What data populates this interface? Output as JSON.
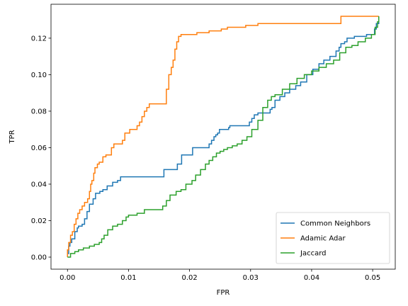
{
  "chart_data": {
    "type": "line",
    "xlabel": "FPR",
    "ylabel": "TPR",
    "xlim": [
      -0.0027,
      0.0537
    ],
    "ylim": [
      -0.0066,
      0.1386
    ],
    "xticks": [
      0.0,
      0.01,
      0.02,
      0.03,
      0.04,
      0.05
    ],
    "xtick_labels": [
      "0.00",
      "0.01",
      "0.02",
      "0.03",
      "0.04",
      "0.05"
    ],
    "yticks": [
      0.0,
      0.02,
      0.04,
      0.06,
      0.08,
      0.1,
      0.12
    ],
    "ytick_labels": [
      "0.00",
      "0.02",
      "0.04",
      "0.06",
      "0.08",
      "0.10",
      "0.12"
    ],
    "grid": false,
    "legend_position": "lower-right",
    "series": [
      {
        "name": "Common Neighbors",
        "color": "#1f77b4",
        "x": [
          0.0,
          0.0,
          0.0002,
          0.0004,
          0.0007,
          0.0012,
          0.0016,
          0.0018,
          0.0024,
          0.0028,
          0.0032,
          0.0036,
          0.0042,
          0.0046,
          0.0053,
          0.0058,
          0.0065,
          0.0074,
          0.0082,
          0.0087,
          0.0092,
          0.0155,
          0.0158,
          0.0178,
          0.018,
          0.0187,
          0.0205,
          0.0209,
          0.0232,
          0.0236,
          0.024,
          0.0243,
          0.0246,
          0.0249,
          0.0262,
          0.0264,
          0.0266,
          0.0298,
          0.0302,
          0.0306,
          0.0312,
          0.0332,
          0.0335,
          0.034,
          0.0348,
          0.0356,
          0.0364,
          0.0374,
          0.0382,
          0.0392,
          0.0402,
          0.0412,
          0.042,
          0.043,
          0.044,
          0.0445,
          0.0448,
          0.0454,
          0.0458,
          0.047,
          0.049,
          0.0503,
          0.0506,
          0.051
        ],
        "y": [
          0.0,
          0.002,
          0.006,
          0.008,
          0.01,
          0.014,
          0.016,
          0.017,
          0.018,
          0.021,
          0.025,
          0.029,
          0.032,
          0.035,
          0.036,
          0.037,
          0.039,
          0.041,
          0.042,
          0.044,
          0.044,
          0.044,
          0.048,
          0.048,
          0.051,
          0.056,
          0.06,
          0.06,
          0.062,
          0.064,
          0.066,
          0.067,
          0.068,
          0.07,
          0.07,
          0.071,
          0.072,
          0.074,
          0.076,
          0.078,
          0.079,
          0.081,
          0.082,
          0.086,
          0.088,
          0.09,
          0.092,
          0.094,
          0.096,
          0.1,
          0.103,
          0.106,
          0.108,
          0.11,
          0.113,
          0.115,
          0.117,
          0.118,
          0.12,
          0.121,
          0.122,
          0.125,
          0.128,
          0.132
        ]
      },
      {
        "name": "Adamic Adar",
        "color": "#ff7f0e",
        "x": [
          0.0,
          0.0,
          0.0002,
          0.0005,
          0.0008,
          0.0011,
          0.0014,
          0.0017,
          0.002,
          0.0024,
          0.0028,
          0.0033,
          0.0036,
          0.0038,
          0.004,
          0.0043,
          0.0045,
          0.0049,
          0.0052,
          0.0058,
          0.0063,
          0.0067,
          0.0072,
          0.0076,
          0.0082,
          0.009,
          0.0094,
          0.0102,
          0.0108,
          0.0114,
          0.0118,
          0.0122,
          0.0126,
          0.013,
          0.0134,
          0.0138,
          0.0158,
          0.0162,
          0.0166,
          0.017,
          0.0173,
          0.0176,
          0.0179,
          0.0182,
          0.0186,
          0.0202,
          0.0212,
          0.0232,
          0.0252,
          0.0262,
          0.0292,
          0.0312,
          0.0365,
          0.0445,
          0.0448,
          0.051
        ],
        "y": [
          0.0,
          0.004,
          0.008,
          0.012,
          0.014,
          0.018,
          0.021,
          0.024,
          0.026,
          0.028,
          0.03,
          0.032,
          0.036,
          0.04,
          0.042,
          0.046,
          0.049,
          0.051,
          0.052,
          0.055,
          0.056,
          0.056,
          0.06,
          0.062,
          0.062,
          0.064,
          0.068,
          0.07,
          0.07,
          0.072,
          0.074,
          0.077,
          0.08,
          0.082,
          0.084,
          0.084,
          0.084,
          0.092,
          0.1,
          0.104,
          0.108,
          0.114,
          0.118,
          0.121,
          0.122,
          0.122,
          0.123,
          0.124,
          0.125,
          0.126,
          0.127,
          0.128,
          0.128,
          0.128,
          0.132,
          0.132
        ]
      },
      {
        "name": "Jaccard",
        "color": "#2ca02c",
        "x": [
          0.0,
          0.0005,
          0.0012,
          0.0018,
          0.0026,
          0.0036,
          0.0044,
          0.0052,
          0.0056,
          0.006,
          0.0066,
          0.0074,
          0.0082,
          0.009,
          0.0096,
          0.01,
          0.0114,
          0.0126,
          0.0156,
          0.0162,
          0.0168,
          0.0178,
          0.0186,
          0.0194,
          0.0204,
          0.021,
          0.0218,
          0.0226,
          0.0232,
          0.0238,
          0.0244,
          0.025,
          0.0256,
          0.0262,
          0.027,
          0.0278,
          0.0286,
          0.0294,
          0.0302,
          0.0312,
          0.032,
          0.0328,
          0.0334,
          0.034,
          0.0352,
          0.0364,
          0.0376,
          0.0388,
          0.04,
          0.0412,
          0.0424,
          0.0436,
          0.0446,
          0.0456,
          0.0466,
          0.0476,
          0.0488,
          0.0498,
          0.0504,
          0.0508,
          0.051
        ],
        "y": [
          0.0,
          0.002,
          0.003,
          0.004,
          0.005,
          0.006,
          0.007,
          0.008,
          0.01,
          0.012,
          0.015,
          0.017,
          0.018,
          0.02,
          0.022,
          0.023,
          0.024,
          0.026,
          0.028,
          0.031,
          0.034,
          0.036,
          0.037,
          0.04,
          0.042,
          0.045,
          0.048,
          0.051,
          0.053,
          0.055,
          0.057,
          0.058,
          0.059,
          0.06,
          0.061,
          0.062,
          0.064,
          0.066,
          0.07,
          0.075,
          0.082,
          0.086,
          0.088,
          0.089,
          0.092,
          0.095,
          0.098,
          0.1,
          0.102,
          0.104,
          0.106,
          0.108,
          0.112,
          0.115,
          0.116,
          0.118,
          0.12,
          0.122,
          0.126,
          0.129,
          0.132
        ]
      }
    ]
  }
}
